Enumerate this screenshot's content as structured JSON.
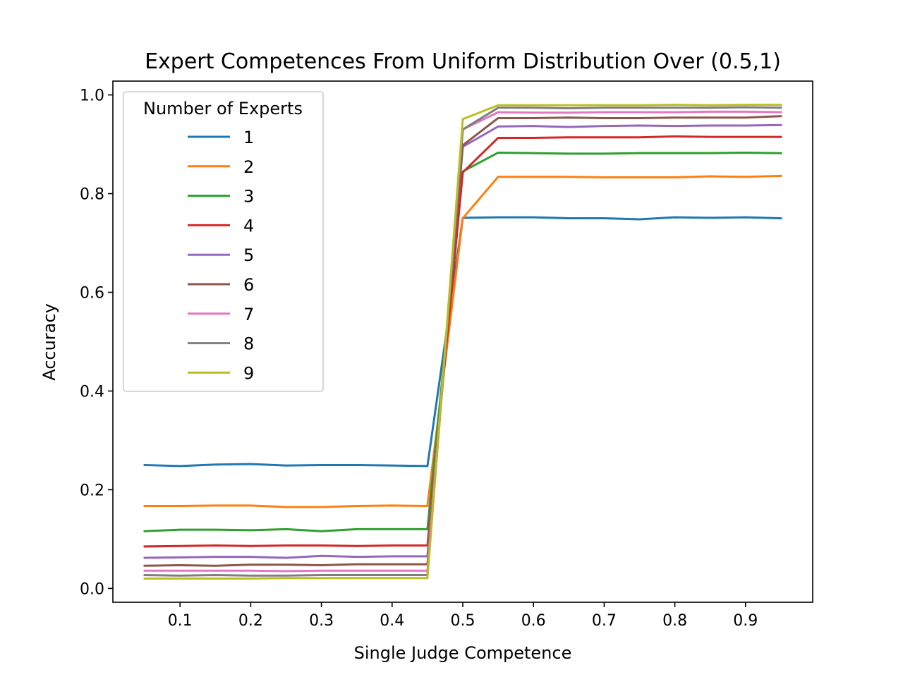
{
  "chart_data": {
    "type": "line",
    "title": "Expert Competences From Uniform Distribution Over (0.5,1)",
    "xlabel": "Single Judge Competence",
    "ylabel": "Accuracy",
    "xlim": [
      0.005,
      0.995
    ],
    "ylim": [
      -0.028,
      1.028
    ],
    "xticks": [
      0.1,
      0.2,
      0.3,
      0.4,
      0.5,
      0.6,
      0.7,
      0.8,
      0.9
    ],
    "xtick_labels": [
      "0.1",
      "0.2",
      "0.3",
      "0.4",
      "0.5",
      "0.6",
      "0.7",
      "0.8",
      "0.9"
    ],
    "yticks": [
      0.0,
      0.2,
      0.4,
      0.6,
      0.8,
      1.0
    ],
    "ytick_labels": [
      "0.0",
      "0.2",
      "0.4",
      "0.6",
      "0.8",
      "1.0"
    ],
    "grid": false,
    "legend": {
      "title": "Number of Experts",
      "placement": "upper-left"
    },
    "x": [
      0.05,
      0.1,
      0.15,
      0.2,
      0.25,
      0.3,
      0.35,
      0.4,
      0.45,
      0.5,
      0.55,
      0.6,
      0.65,
      0.7,
      0.75,
      0.8,
      0.85,
      0.9,
      0.95
    ],
    "series": [
      {
        "name": "1",
        "color": "#1f77b4",
        "values": [
          0.25,
          0.248,
          0.251,
          0.252,
          0.249,
          0.25,
          0.25,
          0.249,
          0.248,
          0.751,
          0.752,
          0.752,
          0.75,
          0.75,
          0.748,
          0.752,
          0.751,
          0.752,
          0.75
        ]
      },
      {
        "name": "2",
        "color": "#ff7f0e",
        "values": [
          0.167,
          0.167,
          0.168,
          0.168,
          0.165,
          0.165,
          0.167,
          0.168,
          0.167,
          0.75,
          0.834,
          0.834,
          0.834,
          0.833,
          0.833,
          0.833,
          0.835,
          0.834,
          0.836
        ]
      },
      {
        "name": "3",
        "color": "#2ca02c",
        "values": [
          0.116,
          0.119,
          0.119,
          0.118,
          0.12,
          0.116,
          0.12,
          0.12,
          0.12,
          0.845,
          0.883,
          0.882,
          0.881,
          0.881,
          0.882,
          0.882,
          0.882,
          0.883,
          0.882
        ]
      },
      {
        "name": "4",
        "color": "#d62728",
        "values": [
          0.085,
          0.086,
          0.087,
          0.086,
          0.087,
          0.087,
          0.086,
          0.087,
          0.087,
          0.843,
          0.913,
          0.913,
          0.914,
          0.914,
          0.914,
          0.916,
          0.915,
          0.915,
          0.915
        ]
      },
      {
        "name": "5",
        "color": "#9467bd",
        "values": [
          0.062,
          0.063,
          0.064,
          0.064,
          0.062,
          0.066,
          0.064,
          0.065,
          0.065,
          0.895,
          0.936,
          0.937,
          0.935,
          0.937,
          0.938,
          0.937,
          0.938,
          0.938,
          0.939
        ]
      },
      {
        "name": "6",
        "color": "#8c564b",
        "values": [
          0.046,
          0.047,
          0.046,
          0.048,
          0.048,
          0.047,
          0.049,
          0.049,
          0.049,
          0.898,
          0.953,
          0.953,
          0.954,
          0.953,
          0.953,
          0.954,
          0.954,
          0.954,
          0.957
        ]
      },
      {
        "name": "7",
        "color": "#e377c2",
        "values": [
          0.036,
          0.036,
          0.036,
          0.036,
          0.035,
          0.036,
          0.036,
          0.036,
          0.036,
          0.93,
          0.965,
          0.964,
          0.964,
          0.965,
          0.965,
          0.965,
          0.966,
          0.966,
          0.965
        ]
      },
      {
        "name": "8",
        "color": "#7f7f7f",
        "values": [
          0.027,
          0.026,
          0.027,
          0.026,
          0.026,
          0.027,
          0.027,
          0.027,
          0.027,
          0.93,
          0.974,
          0.974,
          0.973,
          0.974,
          0.974,
          0.974,
          0.974,
          0.975,
          0.974
        ]
      },
      {
        "name": "9",
        "color": "#bcbd22",
        "values": [
          0.02,
          0.02,
          0.02,
          0.02,
          0.021,
          0.021,
          0.021,
          0.021,
          0.021,
          0.951,
          0.979,
          0.979,
          0.979,
          0.979,
          0.979,
          0.98,
          0.979,
          0.98,
          0.98
        ]
      }
    ]
  }
}
